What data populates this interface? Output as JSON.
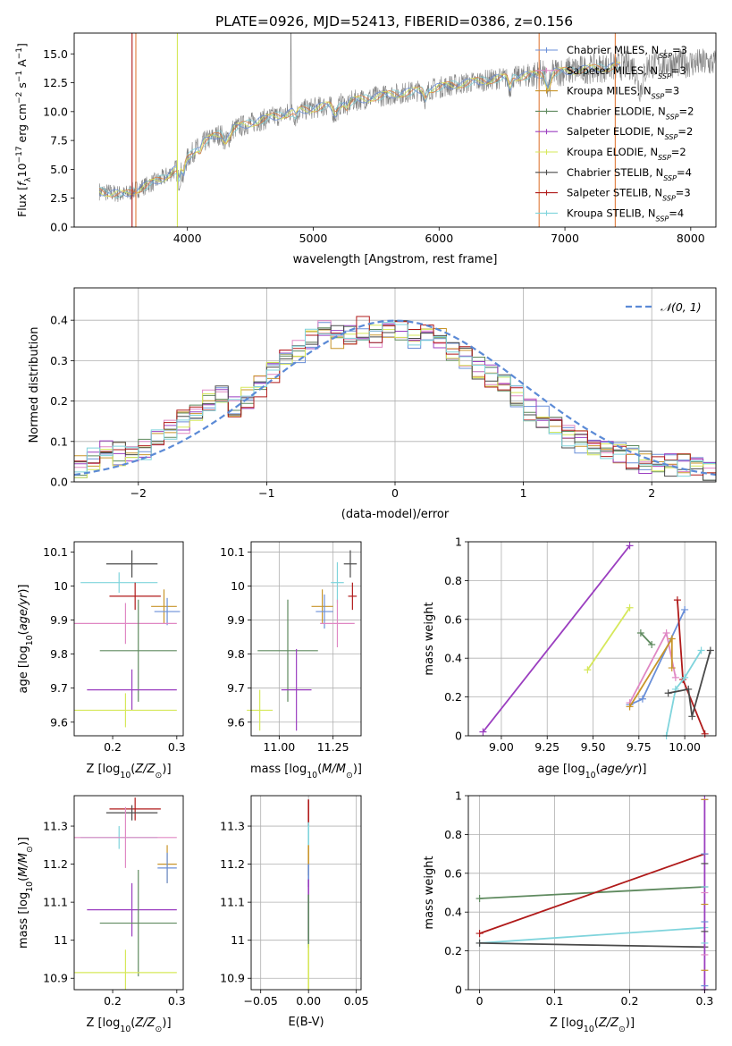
{
  "figure_title": "PLATE=0926, MJD=52413, FIBERID=0386, z=0.156",
  "colors": {
    "chabrier_miles": "#6a8fd8",
    "salpeter_miles": "#e088c4",
    "kroupa_miles": "#c8952a",
    "chabrier_elodie": "#5f8a5f",
    "salpeter_elodie": "#9b3fc0",
    "kroupa_elodie": "#d6e85a",
    "chabrier_stelib": "#4a4a4a",
    "salpeter_stelib": "#b01a1a",
    "kroupa_stelib": "#7fd4dc",
    "spectrum": "#808080",
    "normal_curve": "#5b8ad6",
    "orange_model": "#e07a3a"
  },
  "chart_data": [
    {
      "id": "spectrum",
      "type": "line",
      "title": "PLATE=0926, MJD=52413, FIBERID=0386, z=0.156",
      "xlabel": "wavelength [Angstrom, rest frame]",
      "ylabel": "Flux [fλ10⁻¹⁷ erg cm⁻² s⁻¹ A⁻¹]",
      "xlim": [
        3100,
        8200
      ],
      "ylim": [
        0,
        16.8
      ],
      "xticks": [
        4000,
        5000,
        6000,
        7000,
        8000
      ],
      "yticks": [
        0.0,
        2.5,
        5.0,
        7.5,
        10.0,
        12.5,
        15.0
      ],
      "ytick_labels": [
        "0.0",
        "2.5",
        "5.0",
        "7.5",
        "10.0",
        "12.5",
        "15.0"
      ],
      "grid": false,
      "legend_position": "top-right",
      "legend": [
        "Chabrier MILES, N_SSP=3",
        "Salpeter MILES, N_SSP=3",
        "Kroupa MILES, N_SSP=3",
        "Chabrier ELODIE, N_SSP=2",
        "Salpeter ELODIE, N_SSP=2",
        "Kroupa ELODIE, N_SSP=2",
        "Chabrier STELIB, N_SSP=4",
        "Salpeter STELIB, N_SSP=3",
        "Kroupa STELIB, N_SSP=4"
      ],
      "continuum": {
        "x": [
          3300,
          3500,
          3650,
          3800,
          3950,
          4100,
          4300,
          4500,
          4700,
          4900,
          5100,
          5300,
          5500,
          5700,
          5900,
          6100,
          6300,
          6500,
          6700,
          6900,
          7100,
          7300,
          7500,
          7700,
          7900,
          8100
        ],
        "y": [
          3.1,
          2.8,
          3.5,
          4.2,
          5.3,
          7.2,
          8.3,
          9.0,
          9.6,
          10.1,
          10.5,
          10.9,
          11.3,
          11.6,
          11.9,
          12.3,
          12.6,
          12.9,
          13.1,
          13.4,
          13.6,
          13.8,
          14.0,
          14.1,
          14.2,
          14.2
        ]
      },
      "series": [
        {
          "name": "data",
          "role": "observed spectrum",
          "range": [
            3300,
            8200
          ]
        },
        {
          "name": "model",
          "role": "SSP fits",
          "range": [
            3500,
            7450
          ]
        }
      ]
    },
    {
      "id": "residuals",
      "type": "histogram",
      "xlabel": "(data-model)/error",
      "ylabel": "Normed distribution",
      "xlim": [
        -2.5,
        2.5
      ],
      "ylim": [
        0,
        0.48
      ],
      "xticks": [
        -2,
        -1,
        0,
        1,
        2
      ],
      "xtick_labels": [
        "−2",
        "−1",
        "0",
        "1",
        "2"
      ],
      "yticks": [
        0.0,
        0.1,
        0.2,
        0.3,
        0.4
      ],
      "ytick_labels": [
        "0.0",
        "0.1",
        "0.2",
        "0.3",
        "0.4"
      ],
      "grid": true,
      "legend_position": "top-right",
      "legend": [
        "𝒩(0, 1)"
      ],
      "bin_width": 0.1,
      "bin_start": -2.5,
      "series_values": [
        0.04,
        0.06,
        0.08,
        0.07,
        0.06,
        0.08,
        0.1,
        0.13,
        0.15,
        0.17,
        0.2,
        0.22,
        0.19,
        0.21,
        0.24,
        0.27,
        0.3,
        0.32,
        0.35,
        0.38,
        0.36,
        0.37,
        0.38,
        0.36,
        0.37,
        0.38,
        0.36,
        0.37,
        0.35,
        0.33,
        0.31,
        0.28,
        0.26,
        0.24,
        0.21,
        0.18,
        0.16,
        0.13,
        0.11,
        0.1,
        0.09,
        0.08,
        0.07,
        0.06,
        0.05,
        0.05,
        0.04,
        0.04,
        0.03,
        0.03
      ]
    },
    {
      "id": "age_vs_Z",
      "type": "errorbar",
      "xlabel": "Z [log₁₀(Z/Z⊙)]",
      "ylabel": "age  [log₁₀(age/yr)]",
      "xlim": [
        0.14,
        0.31
      ],
      "ylim": [
        9.56,
        10.13
      ],
      "xticks": [
        0.2,
        0.3
      ],
      "yticks": [
        9.6,
        9.7,
        9.8,
        9.9,
        10.0,
        10.1
      ],
      "grid": false,
      "points": [
        {
          "model": "chabrier_stelib",
          "x": 0.23,
          "xerr": 0.04,
          "y": 10.065,
          "yerr": 0.04
        },
        {
          "model": "kroupa_stelib",
          "x": 0.21,
          "xerr": 0.06,
          "y": 10.01,
          "yerr": 0.03
        },
        {
          "model": "salpeter_stelib",
          "x": 0.235,
          "xerr": 0.04,
          "y": 9.97,
          "yerr": 0.04
        },
        {
          "model": "kroupa_miles",
          "x": 0.28,
          "xerr": 0.02,
          "y": 9.94,
          "yerr": 0.05
        },
        {
          "model": "chabrier_miles",
          "x": 0.285,
          "xerr": 0.02,
          "y": 9.925,
          "yerr": 0.04
        },
        {
          "model": "salpeter_miles",
          "x": 0.22,
          "xerr": 0.08,
          "y": 9.89,
          "yerr": 0.06
        },
        {
          "model": "chabrier_elodie",
          "x": 0.24,
          "xerr": 0.06,
          "y": 9.81,
          "yerr": 0.15
        },
        {
          "model": "salpeter_elodie",
          "x": 0.23,
          "xerr": 0.07,
          "y": 9.695,
          "yerr": 0.06
        },
        {
          "model": "kroupa_elodie",
          "x": 0.22,
          "xerr": 0.08,
          "y": 9.635,
          "yerr": 0.05
        }
      ]
    },
    {
      "id": "age_vs_mass",
      "type": "errorbar",
      "xlabel": "mass [log₁₀(M/M⊙)]",
      "ylabel": "",
      "xlim": [
        10.87,
        11.38
      ],
      "ylim": [
        9.56,
        10.13
      ],
      "xticks": [
        11.0,
        11.25
      ],
      "xtick_labels": [
        "11.00",
        "11.25"
      ],
      "yticks": [
        9.6,
        9.7,
        9.8,
        9.9,
        10.0,
        10.1
      ],
      "grid": true,
      "points": [
        {
          "model": "chabrier_stelib",
          "x": 11.33,
          "xerr": 0.03,
          "y": 10.065,
          "yerr": 0.04
        },
        {
          "model": "kroupa_stelib",
          "x": 11.27,
          "xerr": 0.03,
          "y": 10.01,
          "yerr": 0.06
        },
        {
          "model": "salpeter_stelib",
          "x": 11.34,
          "xerr": 0.02,
          "y": 9.97,
          "yerr": 0.04
        },
        {
          "model": "kroupa_miles",
          "x": 11.2,
          "xerr": 0.05,
          "y": 9.94,
          "yerr": 0.05
        },
        {
          "model": "chabrier_miles",
          "x": 11.21,
          "xerr": 0.04,
          "y": 9.925,
          "yerr": 0.05
        },
        {
          "model": "salpeter_miles",
          "x": 11.27,
          "xerr": 0.08,
          "y": 9.89,
          "yerr": 0.07
        },
        {
          "model": "chabrier_elodie",
          "x": 11.04,
          "xerr": 0.14,
          "y": 9.81,
          "yerr": 0.15
        },
        {
          "model": "salpeter_elodie",
          "x": 11.08,
          "xerr": 0.07,
          "y": 9.695,
          "yerr": 0.12
        },
        {
          "model": "kroupa_elodie",
          "x": 10.91,
          "xerr": 0.06,
          "y": 9.635,
          "yerr": 0.06
        }
      ]
    },
    {
      "id": "weight_vs_age",
      "type": "line",
      "xlabel": "age  [log₁₀(age/yr)]",
      "ylabel": "mass weight",
      "xlim": [
        8.82,
        10.17
      ],
      "ylim": [
        0,
        1.0
      ],
      "xticks": [
        9.0,
        9.25,
        9.5,
        9.75,
        10.0
      ],
      "xtick_labels": [
        "9.00",
        "9.25",
        "9.50",
        "9.75",
        "10.00"
      ],
      "yticks": [
        0.0,
        0.2,
        0.4,
        0.6,
        0.8,
        1.0
      ],
      "grid": true,
      "series": [
        {
          "model": "salpeter_elodie",
          "x": [
            8.9,
            9.7
          ],
          "y": [
            0.02,
            0.98
          ]
        },
        {
          "model": "kroupa_elodie",
          "x": [
            9.47,
            9.7
          ],
          "y": [
            0.34,
            0.66
          ]
        },
        {
          "model": "chabrier_elodie",
          "x": [
            9.76,
            9.82
          ],
          "y": [
            0.53,
            0.47
          ]
        },
        {
          "model": "chabrier_miles",
          "x": [
            9.7,
            9.77,
            10.0
          ],
          "y": [
            0.16,
            0.19,
            0.65
          ]
        },
        {
          "model": "salpeter_miles",
          "x": [
            9.7,
            9.9,
            9.95
          ],
          "y": [
            0.17,
            0.53,
            0.3
          ]
        },
        {
          "model": "kroupa_miles",
          "x": [
            9.7,
            9.93,
            9.93
          ],
          "y": [
            0.15,
            0.5,
            0.35
          ]
        },
        {
          "model": "salpeter_stelib",
          "x": [
            9.96,
            9.99,
            10.11
          ],
          "y": [
            0.7,
            0.29,
            0.01
          ]
        },
        {
          "model": "kroupa_stelib",
          "x": [
            9.9,
            9.95,
            10.0,
            10.09
          ],
          "y": [
            0.0,
            0.24,
            0.3,
            0.44
          ]
        },
        {
          "model": "chabrier_stelib",
          "x": [
            9.91,
            10.02,
            10.04,
            10.14
          ],
          "y": [
            0.22,
            0.24,
            0.1,
            0.44
          ]
        }
      ]
    },
    {
      "id": "mass_vs_Z",
      "type": "errorbar",
      "xlabel": "Z [log₁₀(Z/Z⊙)]",
      "ylabel": "mass [log₁₀(M/M⊙)]",
      "xlim": [
        0.14,
        0.31
      ],
      "ylim": [
        10.87,
        11.38
      ],
      "xticks": [
        0.2,
        0.3
      ],
      "yticks": [
        10.9,
        11.0,
        11.1,
        11.2,
        11.3
      ],
      "grid": false,
      "points": [
        {
          "model": "salpeter_stelib",
          "x": 0.235,
          "xerr": 0.04,
          "y": 11.345,
          "yerr": 0.03
        },
        {
          "model": "chabrier_stelib",
          "x": 0.23,
          "xerr": 0.04,
          "y": 11.335,
          "yerr": 0.02
        },
        {
          "model": "kroupa_stelib",
          "x": 0.21,
          "xerr": 0.06,
          "y": 11.27,
          "yerr": 0.03
        },
        {
          "model": "salpeter_miles",
          "x": 0.22,
          "xerr": 0.08,
          "y": 11.27,
          "yerr": 0.08
        },
        {
          "model": "kroupa_miles",
          "x": 0.285,
          "xerr": 0.015,
          "y": 11.2,
          "yerr": 0.05
        },
        {
          "model": "chabrier_miles",
          "x": 0.285,
          "xerr": 0.015,
          "y": 11.19,
          "yerr": 0.04
        },
        {
          "model": "salpeter_elodie",
          "x": 0.23,
          "xerr": 0.07,
          "y": 11.08,
          "yerr": 0.07
        },
        {
          "model": "chabrier_elodie",
          "x": 0.24,
          "xerr": 0.06,
          "y": 11.045,
          "yerr": 0.14
        },
        {
          "model": "kroupa_elodie",
          "x": 0.22,
          "xerr": 0.08,
          "y": 10.915,
          "yerr": 0.06
        }
      ]
    },
    {
      "id": "mass_vs_ebv",
      "type": "errorbar",
      "xlabel": "E(B-V)",
      "ylabel": "",
      "xlim": [
        -0.06,
        0.055
      ],
      "ylim": [
        10.87,
        11.38
      ],
      "xticks": [
        -0.05,
        0.0,
        0.05
      ],
      "xtick_labels": [
        "−0.05",
        "0.00",
        "0.05"
      ],
      "yticks": [
        10.9,
        11.0,
        11.1,
        11.2,
        11.3
      ],
      "grid": true,
      "segments": [
        {
          "model": "salpeter_stelib",
          "y": [
            11.3,
            11.37
          ]
        },
        {
          "model": "kroupa_stelib",
          "y": [
            11.25,
            11.31
          ]
        },
        {
          "model": "kroupa_miles",
          "y": [
            11.17,
            11.25
          ]
        },
        {
          "model": "chabrier_miles",
          "y": [
            11.14,
            11.2
          ]
        },
        {
          "model": "salpeter_elodie",
          "y": [
            11.0,
            11.16
          ]
        },
        {
          "model": "chabrier_elodie",
          "y": [
            10.98,
            11.12
          ]
        },
        {
          "model": "kroupa_elodie",
          "y": [
            10.87,
            10.99
          ]
        }
      ]
    },
    {
      "id": "weight_vs_Z",
      "type": "line",
      "xlabel": "Z [log₁₀(Z/Z⊙)]",
      "ylabel": "mass weight",
      "xlim": [
        -0.015,
        0.315
      ],
      "ylim": [
        0,
        1.0
      ],
      "xticks": [
        0.0,
        0.1,
        0.2,
        0.3
      ],
      "yticks": [
        0.0,
        0.2,
        0.4,
        0.6,
        0.8,
        1.0
      ],
      "grid": true,
      "series": [
        {
          "model": "chabrier_elodie",
          "x": [
            0.0,
            0.3
          ],
          "y": [
            0.47,
            0.53
          ]
        },
        {
          "model": "salpeter_stelib",
          "x": [
            0.0,
            0.3
          ],
          "y": [
            0.29,
            0.7
          ]
        },
        {
          "model": "kroupa_stelib",
          "x": [
            0.0,
            0.3
          ],
          "y": [
            0.24,
            0.32
          ]
        },
        {
          "model": "chabrier_stelib",
          "x": [
            0.0,
            0.3
          ],
          "y": [
            0.24,
            0.22
          ]
        },
        {
          "model": "salpeter_elodie",
          "x": [
            0.3,
            0.3
          ],
          "y": [
            0.0,
            0.98
          ]
        }
      ],
      "stack_at_0_3": [
        0.02,
        0.1,
        0.18,
        0.24,
        0.3,
        0.35,
        0.44,
        0.5,
        0.53,
        0.65,
        0.7,
        0.98
      ]
    }
  ]
}
